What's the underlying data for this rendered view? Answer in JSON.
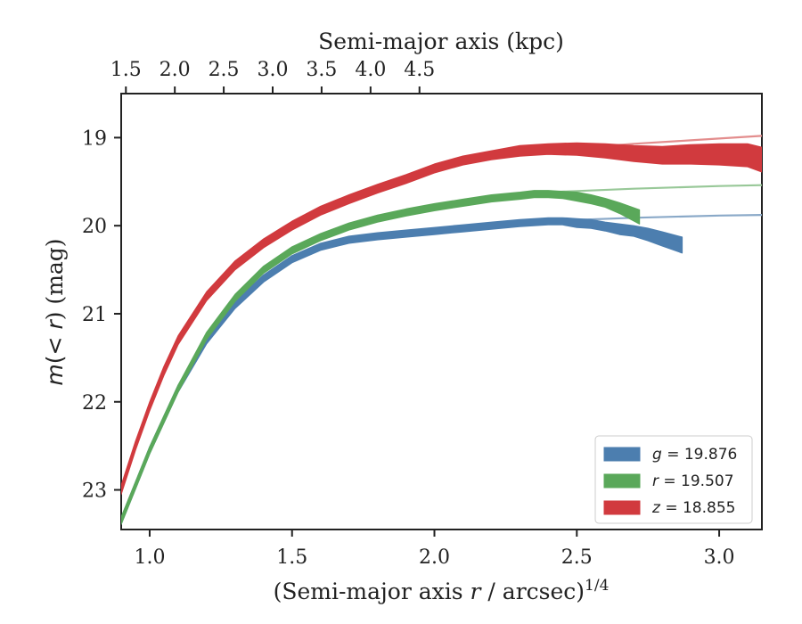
{
  "chart_data": {
    "type": "line",
    "xlabel_prefix": "(Semi-major axis ",
    "xlabel_var": "r",
    "xlabel_suffix": " / arcsec)",
    "xlabel_exp": "1/4",
    "top_xlabel": "Semi-major axis (kpc)",
    "ylabel_m": "m",
    "ylabel_mid": "(< ",
    "ylabel_r": "r",
    "ylabel_end": ") (mag)",
    "xlim": [
      0.9,
      3.15
    ],
    "ylim": [
      23.45,
      18.5
    ],
    "y_inverted": true,
    "x_ticks": [
      1.0,
      1.5,
      2.0,
      2.5,
      3.0
    ],
    "x_tick_labels": [
      "1.0",
      "1.5",
      "2.0",
      "2.5",
      "3.0"
    ],
    "y_ticks": [
      19,
      20,
      21,
      22,
      23
    ],
    "y_tick_labels": [
      "19",
      "20",
      "21",
      "22",
      "23"
    ],
    "top_ticks": [
      {
        "x": 0.9165,
        "label": "1.5"
      },
      {
        "x": 1.0883,
        "label": "2.0"
      },
      {
        "x": 1.2601,
        "label": "2.5"
      },
      {
        "x": 1.432,
        "label": "3.0"
      },
      {
        "x": 1.6038,
        "label": "3.5"
      },
      {
        "x": 1.7757,
        "label": "4.0"
      },
      {
        "x": 1.9475,
        "label": "4.5"
      }
    ],
    "legend_position": "lower-right",
    "series": [
      {
        "name": "g",
        "value_label": " = 19.876",
        "color": "#4c7eaf",
        "fit_color": "#8aa9c8",
        "x": [
          0.9,
          0.95,
          1.0,
          1.05,
          1.1,
          1.2,
          1.3,
          1.4,
          1.5,
          1.6,
          1.7,
          1.8,
          1.9,
          2.0,
          2.1,
          2.2,
          2.3,
          2.4,
          2.45,
          2.5,
          2.55,
          2.6,
          2.65,
          2.7,
          2.75,
          2.8,
          2.87
        ],
        "y": [
          23.35,
          22.95,
          22.55,
          22.2,
          21.85,
          21.3,
          20.9,
          20.6,
          20.38,
          20.24,
          20.16,
          20.12,
          20.09,
          20.06,
          20.03,
          20.0,
          19.97,
          19.95,
          19.95,
          19.97,
          19.98,
          20.01,
          20.04,
          20.06,
          20.1,
          20.15,
          20.22
        ],
        "band": [
          0.04,
          0.04,
          0.04,
          0.04,
          0.04,
          0.04,
          0.04,
          0.04,
          0.04,
          0.04,
          0.04,
          0.04,
          0.04,
          0.04,
          0.04,
          0.04,
          0.04,
          0.04,
          0.04,
          0.05,
          0.05,
          0.05,
          0.06,
          0.06,
          0.07,
          0.08,
          0.09
        ],
        "fit_x": [
          2.45,
          2.7,
          3.0,
          3.15
        ],
        "fit_y": [
          19.94,
          19.91,
          19.885,
          19.878
        ]
      },
      {
        "name": "r",
        "value_label": " = 19.507",
        "color": "#5aa85a",
        "fit_color": "#98c898",
        "x": [
          0.9,
          0.95,
          1.0,
          1.05,
          1.1,
          1.2,
          1.3,
          1.4,
          1.5,
          1.6,
          1.7,
          1.8,
          1.9,
          2.0,
          2.1,
          2.2,
          2.3,
          2.35,
          2.4,
          2.45,
          2.5,
          2.55,
          2.6,
          2.65,
          2.72
        ],
        "y": [
          23.35,
          22.95,
          22.55,
          22.2,
          21.85,
          21.25,
          20.82,
          20.5,
          20.28,
          20.13,
          20.01,
          19.92,
          19.85,
          19.79,
          19.74,
          19.69,
          19.66,
          19.64,
          19.64,
          19.65,
          19.67,
          19.7,
          19.74,
          19.8,
          19.9
        ],
        "band": [
          0.04,
          0.04,
          0.04,
          0.04,
          0.04,
          0.04,
          0.04,
          0.04,
          0.04,
          0.04,
          0.04,
          0.04,
          0.04,
          0.04,
          0.04,
          0.04,
          0.04,
          0.04,
          0.04,
          0.04,
          0.05,
          0.05,
          0.05,
          0.06,
          0.08
        ],
        "fit_x": [
          2.4,
          2.7,
          3.0,
          3.15
        ],
        "fit_y": [
          19.62,
          19.58,
          19.55,
          19.54
        ]
      },
      {
        "name": "z",
        "value_label": " = 18.855",
        "color": "#d13a3e",
        "fit_color": "#e38d8d",
        "x": [
          0.9,
          0.95,
          1.0,
          1.05,
          1.1,
          1.2,
          1.3,
          1.4,
          1.5,
          1.6,
          1.7,
          1.8,
          1.9,
          2.0,
          2.1,
          2.2,
          2.3,
          2.4,
          2.5,
          2.6,
          2.7,
          2.8,
          2.9,
          3.0,
          3.1,
          3.15
        ],
        "y": [
          23.0,
          22.5,
          22.05,
          21.65,
          21.3,
          20.8,
          20.45,
          20.2,
          20.0,
          19.83,
          19.7,
          19.58,
          19.47,
          19.35,
          19.26,
          19.2,
          19.15,
          19.13,
          19.13,
          19.15,
          19.18,
          19.2,
          19.19,
          19.19,
          19.2,
          19.25
        ],
        "band": [
          0.05,
          0.05,
          0.05,
          0.05,
          0.05,
          0.05,
          0.05,
          0.05,
          0.05,
          0.05,
          0.05,
          0.05,
          0.05,
          0.05,
          0.05,
          0.05,
          0.06,
          0.06,
          0.07,
          0.08,
          0.09,
          0.1,
          0.11,
          0.12,
          0.13,
          0.14
        ],
        "fit_x": [
          2.3,
          2.5,
          2.7,
          2.9,
          3.15
        ],
        "fit_y": [
          19.17,
          19.12,
          19.07,
          19.03,
          18.98
        ]
      }
    ]
  }
}
